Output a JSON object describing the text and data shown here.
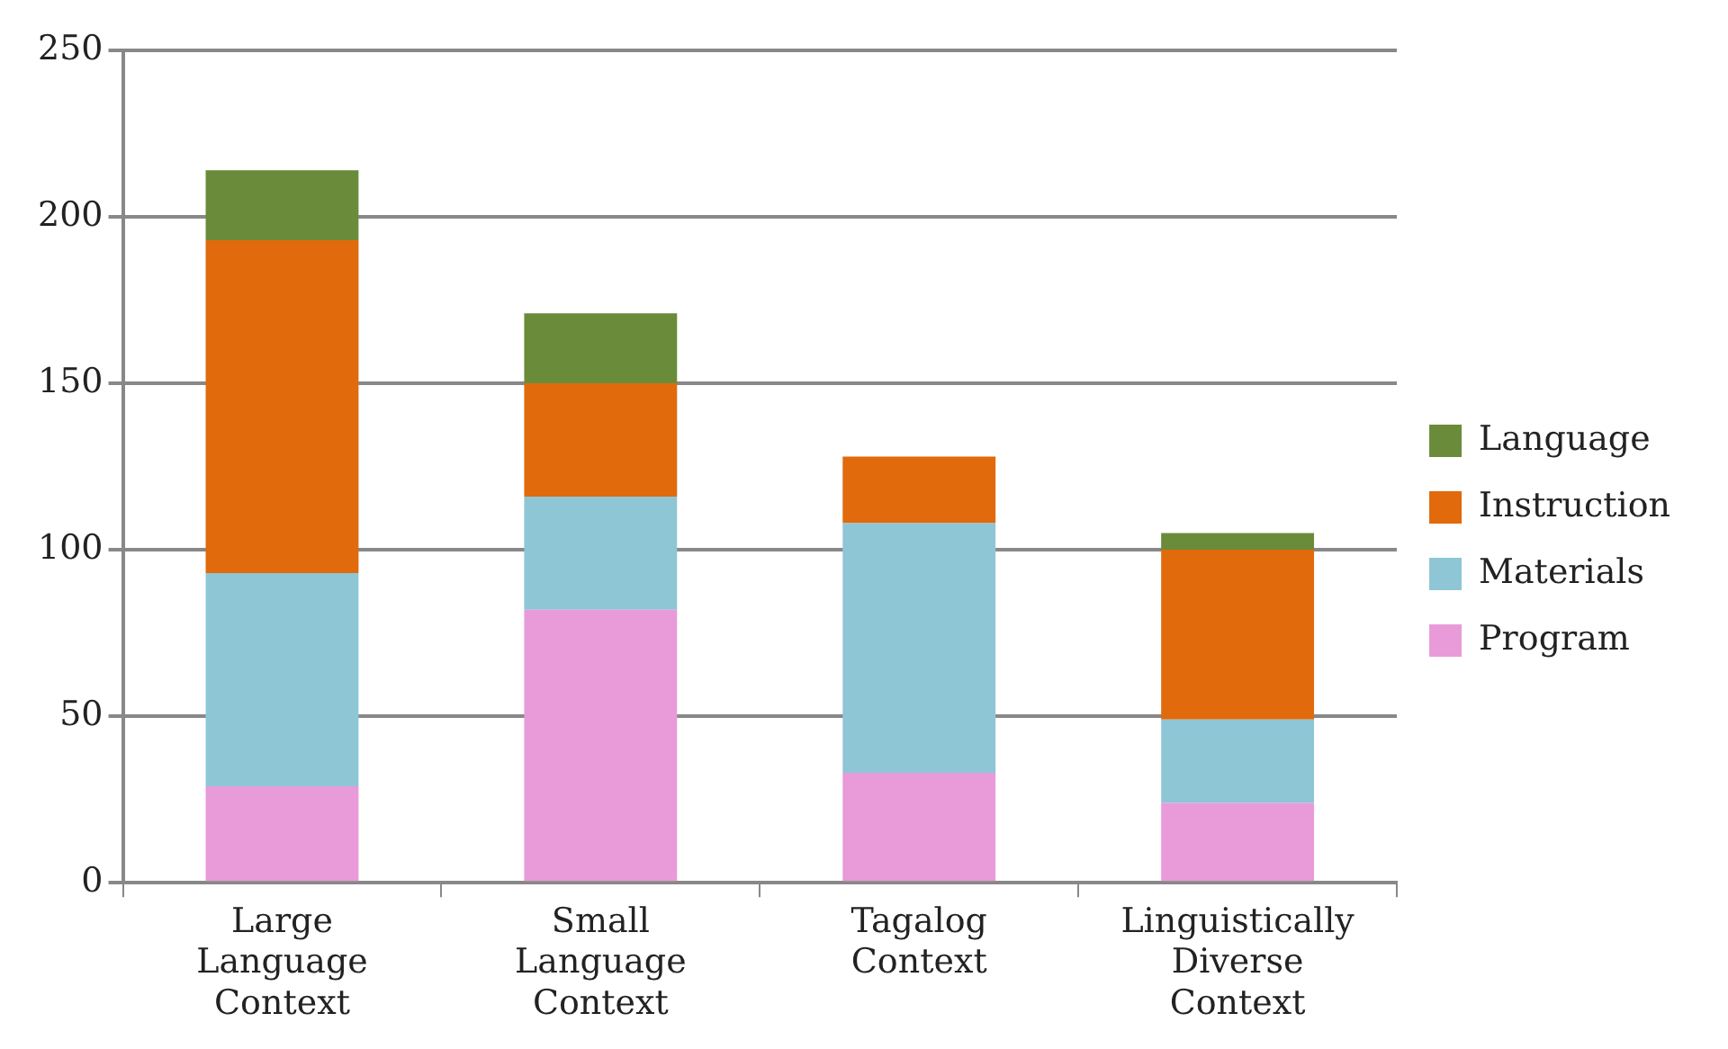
{
  "chart_data": {
    "type": "bar",
    "stacked": true,
    "categories": [
      "Large Language Context",
      "Small Language Context",
      "Tagalog Context",
      "Linguistically Diverse Context"
    ],
    "series": [
      {
        "name": "Program",
        "color": "#e89bd8",
        "values": [
          29,
          82,
          33,
          24
        ]
      },
      {
        "name": "Materials",
        "color": "#8ec6d6",
        "values": [
          64,
          34,
          75,
          25
        ]
      },
      {
        "name": "Instruction",
        "color": "#e06a0c",
        "values": [
          100,
          34,
          20,
          51
        ]
      },
      {
        "name": "Language",
        "color": "#6a8c3a",
        "values": [
          21,
          21,
          null,
          5
        ]
      }
    ],
    "ylim": [
      0,
      250
    ],
    "yticks": [
      0,
      50,
      100,
      150,
      200,
      250
    ],
    "grid": "y",
    "legend": "right"
  }
}
